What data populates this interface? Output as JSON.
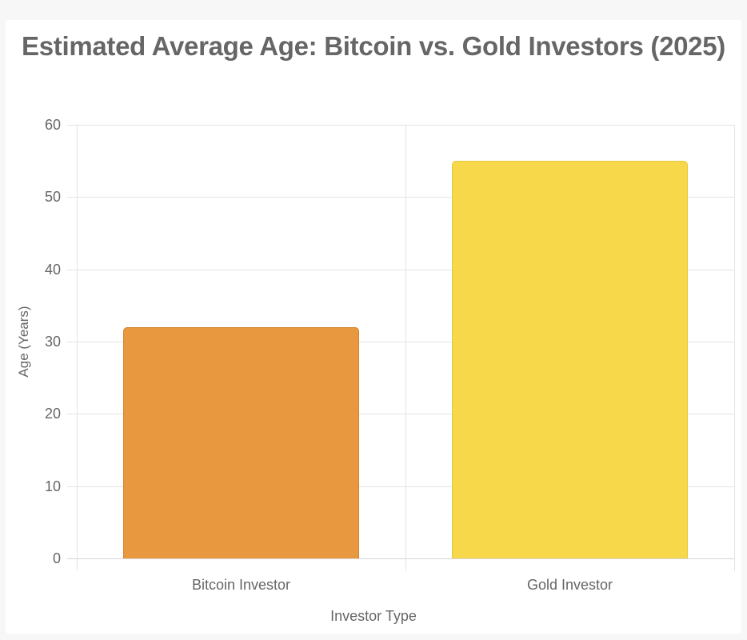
{
  "chart_data": {
    "type": "bar",
    "title": "Estimated Average Age: Bitcoin vs. Gold Investors (2025)",
    "xlabel": "Investor Type",
    "ylabel": "Age (Years)",
    "categories": [
      "Bitcoin Investor",
      "Gold Investor"
    ],
    "values": [
      32,
      55
    ],
    "colors": [
      "#E8983E",
      "#F7D84B"
    ],
    "border_colors": [
      "#D4822A",
      "#E8C83A"
    ],
    "ylim": [
      0,
      60
    ],
    "yticks": [
      "0",
      "10",
      "20",
      "30",
      "40",
      "50",
      "60"
    ],
    "grid": true,
    "legend": "none"
  }
}
